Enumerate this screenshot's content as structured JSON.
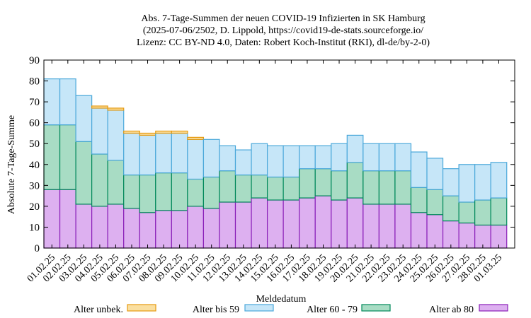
{
  "chart_data": {
    "type": "bar",
    "stacked": true,
    "title_lines": [
      "Abs. 7-Tage-Summen der neuen COVID-19 Infizierten in SK Hamburg",
      "(2025-07-06/2502, D. Lippold, https://covid19-de-stats.sourceforge.io/",
      "Lizenz: CC BY-ND 4.0, Daten: Robert Koch-Institut (RKI), dl-de/by-2-0)"
    ],
    "xlabel": "Meldedatum",
    "ylabel": "Absolute 7-Tage-Summe",
    "ylim": [
      0,
      90
    ],
    "yticks": [
      0,
      10,
      20,
      30,
      40,
      50,
      60,
      70,
      80,
      90
    ],
    "categories": [
      "01.02.25",
      "02.02.25",
      "03.02.25",
      "04.02.25",
      "05.02.25",
      "06.02.25",
      "07.02.25",
      "08.02.25",
      "09.02.25",
      "10.02.25",
      "11.02.25",
      "12.02.25",
      "13.02.25",
      "14.02.25",
      "15.02.25",
      "16.02.25",
      "17.02.25",
      "18.02.25",
      "19.02.25",
      "20.02.25",
      "21.02.25",
      "22.02.25",
      "23.02.25",
      "24.02.25",
      "25.02.25",
      "26.02.25",
      "27.02.25",
      "28.02.25",
      "01.03.25"
    ],
    "series": [
      {
        "name": "Alter ab 80",
        "color": "#DDB0F0",
        "stroke": "#8A1FB8",
        "values": [
          28,
          28,
          21,
          20,
          21,
          19,
          17,
          18,
          18,
          20,
          19,
          22,
          22,
          24,
          23,
          23,
          24,
          25,
          23,
          24,
          21,
          21,
          21,
          17,
          16,
          13,
          12,
          11,
          11
        ]
      },
      {
        "name": "Alter 60 - 79",
        "color": "#A8DCC4",
        "stroke": "#00885A",
        "values": [
          31,
          31,
          30,
          25,
          21,
          16,
          18,
          18,
          18,
          13,
          15,
          15,
          13,
          11,
          11,
          11,
          14,
          13,
          14,
          17,
          16,
          16,
          16,
          12,
          12,
          12,
          10,
          12,
          13
        ]
      },
      {
        "name": "Alter bis 59",
        "color": "#C6E6F8",
        "stroke": "#4BA8DA",
        "values": [
          22,
          22,
          22,
          22,
          24,
          20,
          19,
          19,
          19,
          19,
          18,
          12,
          12,
          15,
          15,
          15,
          11,
          11,
          13,
          13,
          13,
          13,
          13,
          17,
          15,
          13,
          18,
          17,
          17
        ]
      },
      {
        "name": "Alter unbek.",
        "color": "#FADFA0",
        "stroke": "#E69A10",
        "values": [
          0,
          0,
          0,
          1,
          1,
          1,
          1,
          1,
          1,
          1,
          0,
          0,
          0,
          0,
          0,
          0,
          0,
          0,
          0,
          0,
          0,
          0,
          0,
          0,
          0,
          0,
          0,
          0,
          0
        ]
      }
    ],
    "legend_order": [
      "Alter unbek.",
      "Alter bis 59",
      "Alter 60 - 79",
      "Alter ab 80"
    ],
    "legend_position": "bottom",
    "grid": false
  }
}
